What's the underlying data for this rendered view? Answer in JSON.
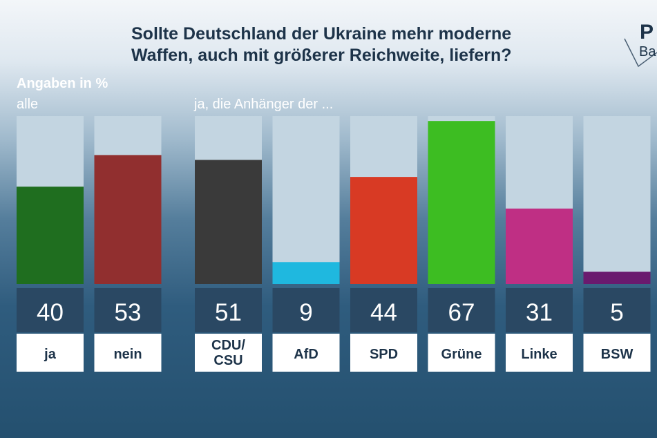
{
  "title_line1": "Sollte Deutschland der Ukraine mehr moderne",
  "title_line2": "Waffen, auch mit größerer Reichweite, liefern?",
  "logo": {
    "line1": "P",
    "line2": "Ba"
  },
  "unit_label": "Angaben in %",
  "subtitle_all": "alle",
  "subtitle_party": "ja, die Anhänger der ...",
  "colors": {
    "track": "#c3d5e1",
    "value_box": "#2a4863",
    "label_box": "#ffffff"
  },
  "chart_data": {
    "type": "bar",
    "title": "Sollte Deutschland der Ukraine mehr moderne Waffen, auch mit größerer Reichweite, liefern?",
    "ylabel": "Angaben in %",
    "ylim": [
      0,
      70
    ],
    "groups": [
      {
        "name": "alle",
        "bars": [
          {
            "label": "ja",
            "value": 40,
            "color": "#1f6e1f"
          },
          {
            "label": "nein",
            "value": 53,
            "color": "#912f2f"
          }
        ]
      },
      {
        "name": "ja, die Anhänger der ...",
        "bars": [
          {
            "label": "CDU/ CSU",
            "value": 51,
            "color": "#3a3a3a"
          },
          {
            "label": "AfD",
            "value": 9,
            "color": "#1fb8df"
          },
          {
            "label": "SPD",
            "value": 44,
            "color": "#d83a24"
          },
          {
            "label": "Grüne",
            "value": 67,
            "color": "#3dbd22"
          },
          {
            "label": "Linke",
            "value": 31,
            "color": "#bf2f84"
          },
          {
            "label": "BSW",
            "value": 5,
            "color": "#6a1a6e"
          }
        ]
      }
    ]
  }
}
